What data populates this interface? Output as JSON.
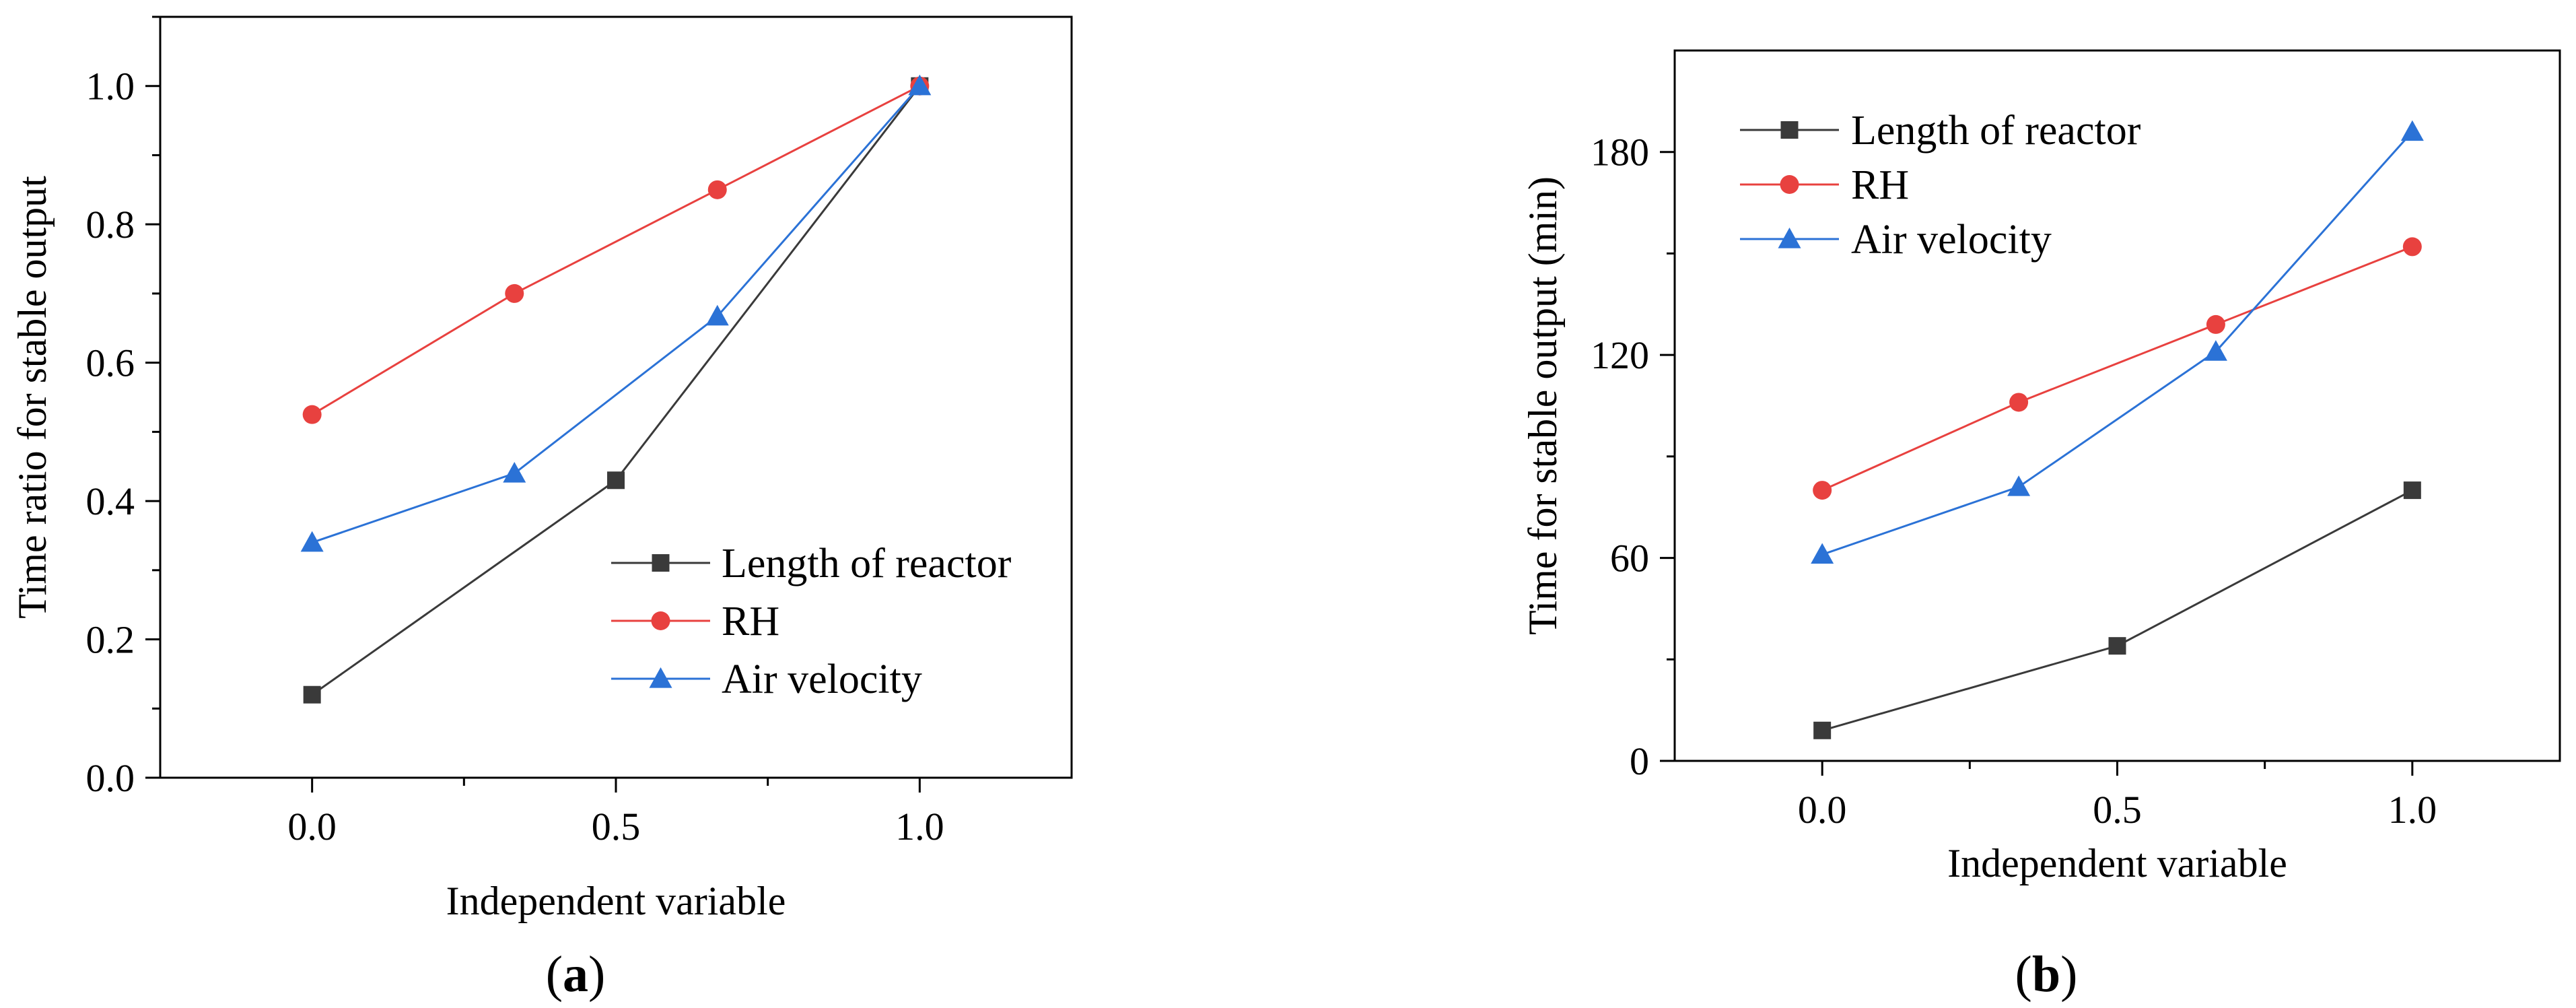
{
  "chart_data": [
    {
      "type": "line",
      "panel_label": "a",
      "caption_open": "(",
      "caption_close": ")",
      "title": "",
      "xlabel": "Independent variable",
      "ylabel": "Time ratio for stable output",
      "xlim": [
        -0.25,
        1.25
      ],
      "ylim": [
        0.0,
        1.1
      ],
      "xticks": [
        0.0,
        0.5,
        1.0
      ],
      "xtick_labels": [
        "0.0",
        "0.5",
        "1.0"
      ],
      "yticks": [
        0.0,
        0.2,
        0.4,
        0.6,
        0.8,
        1.0
      ],
      "ytick_labels": [
        "0.0",
        "0.2",
        "0.4",
        "0.6",
        "0.8",
        "1.0"
      ],
      "legend_position": "lower-right",
      "series": [
        {
          "name": "Length of reactor",
          "color": "#3a3a3a",
          "marker": "square",
          "x": [
            0.0,
            0.5,
            1.0
          ],
          "y": [
            0.12,
            0.43,
            1.0
          ]
        },
        {
          "name": "RH",
          "color": "#e8413f",
          "marker": "circle",
          "x": [
            0.0,
            0.333,
            0.667,
            1.0
          ],
          "y": [
            0.525,
            0.7,
            0.85,
            1.0
          ]
        },
        {
          "name": "Air velocity",
          "color": "#2b72d6",
          "marker": "triangle",
          "x": [
            0.0,
            0.333,
            0.667,
            1.0
          ],
          "y": [
            0.34,
            0.44,
            0.667,
            1.0
          ]
        }
      ]
    },
    {
      "type": "line",
      "panel_label": "b",
      "caption_open": "(",
      "caption_close": ")",
      "title": "",
      "xlabel": "Independent variable",
      "ylabel": "Time for stable output (min)",
      "xlim": [
        -0.25,
        1.25
      ],
      "ylim": [
        0,
        210
      ],
      "xticks": [
        0.0,
        0.5,
        1.0
      ],
      "xtick_labels": [
        "0.0",
        "0.5",
        "1.0"
      ],
      "yticks": [
        0,
        60,
        120,
        180
      ],
      "ytick_labels": [
        "0",
        "60",
        "120",
        "180"
      ],
      "legend_position": "top-left",
      "series": [
        {
          "name": "Length of reactor",
          "color": "#3a3a3a",
          "marker": "square",
          "x": [
            0.0,
            0.5,
            1.0
          ],
          "y": [
            9,
            34,
            80
          ]
        },
        {
          "name": "RH",
          "color": "#e8413f",
          "marker": "circle",
          "x": [
            0.0,
            0.333,
            0.667,
            1.0
          ],
          "y": [
            80,
            106,
            129,
            152
          ]
        },
        {
          "name": "Air velocity",
          "color": "#2b72d6",
          "marker": "triangle",
          "x": [
            0.0,
            0.333,
            0.667,
            1.0
          ],
          "y": [
            61,
            81,
            121,
            186
          ]
        }
      ]
    }
  ]
}
